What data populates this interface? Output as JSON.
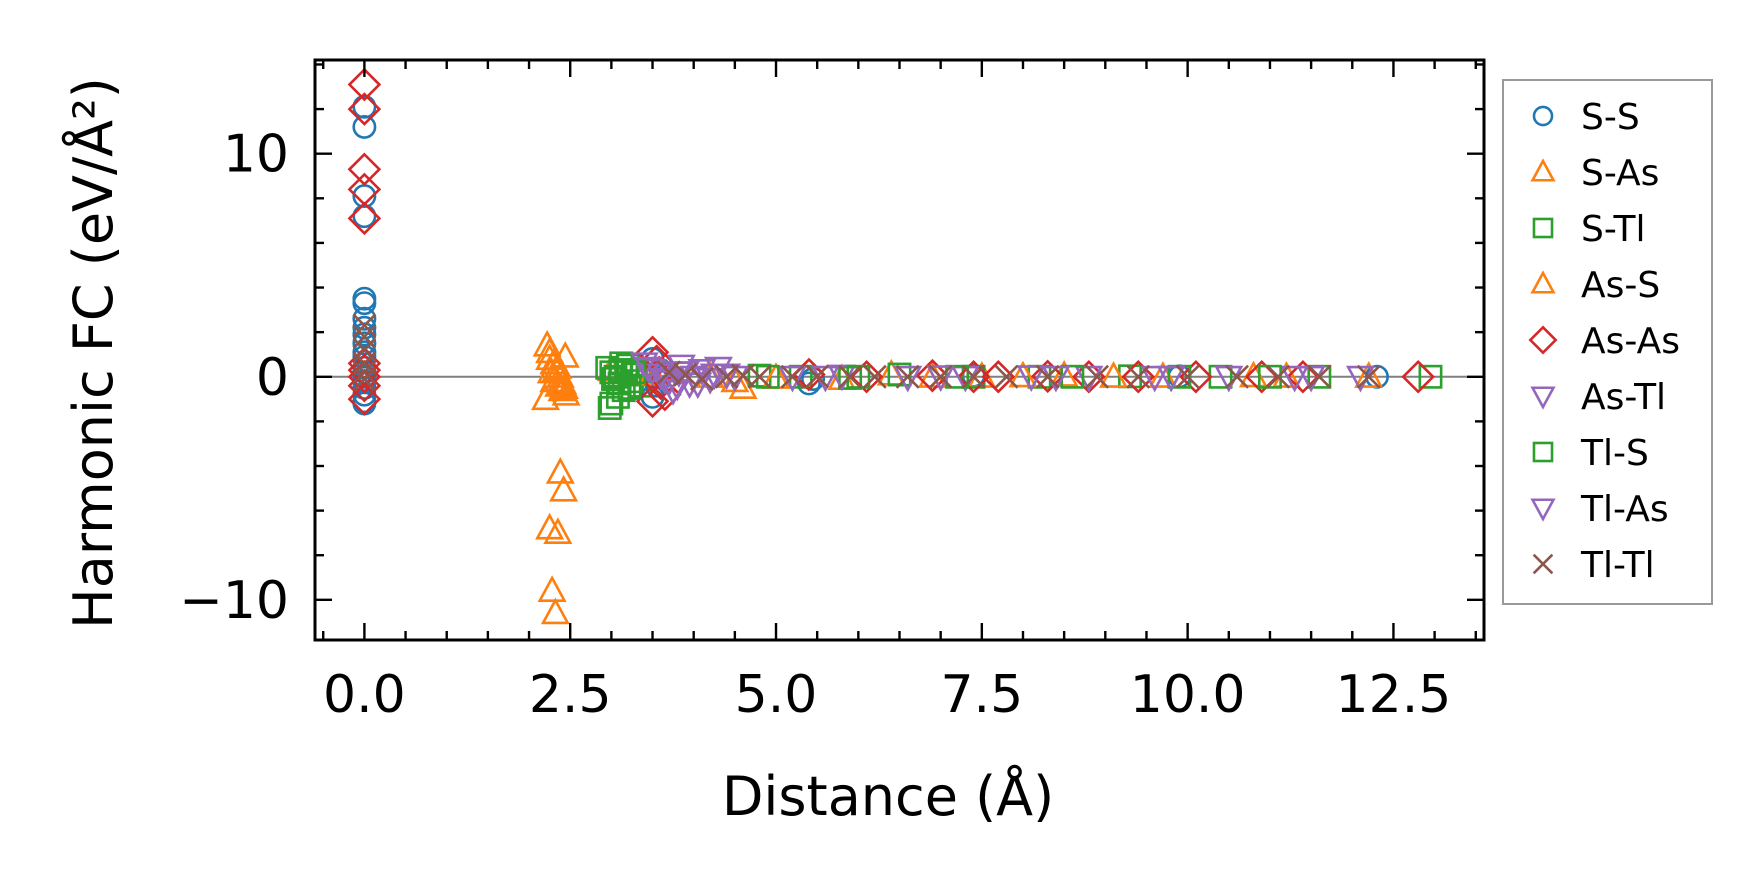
{
  "chart_data": {
    "type": "scatter",
    "title": "",
    "xlabel": "Distance (Å)",
    "ylabel": "Harmonic FC (eV/Å²)",
    "xlim": [
      -0.6,
      13.6
    ],
    "ylim": [
      -11.8,
      14.2
    ],
    "x_ticks": [
      0.0,
      2.5,
      5.0,
      7.5,
      10.0,
      12.5
    ],
    "x_tick_labels": [
      "0.0",
      "2.5",
      "5.0",
      "7.5",
      "10.0",
      "12.5"
    ],
    "y_ticks": [
      -10,
      0,
      10
    ],
    "y_tick_labels": [
      "−10",
      "0",
      "10"
    ],
    "zero_line": true,
    "grid": false,
    "legend_position": "outside-right",
    "series": [
      {
        "name": "S-S",
        "marker": "circle",
        "color": "#1f77b4",
        "x": [
          0,
          0,
          0,
          0,
          0,
          0,
          0,
          0,
          0,
          0,
          0,
          0,
          0,
          0,
          0,
          0,
          0,
          0,
          0,
          0,
          3.5,
          3.55,
          3.6,
          3.5,
          5.4,
          5.45,
          7.4,
          9.9,
          12.3
        ],
        "y": [
          11.2,
          12.1,
          8.1,
          7.2,
          3.5,
          3.3,
          2.6,
          1.9,
          1.5,
          0.9,
          0.4,
          0.2,
          0.0,
          -0.2,
          -0.5,
          -0.8,
          -1.1,
          -1.2,
          2.2,
          1.1,
          0.8,
          -0.4,
          0.3,
          -0.9,
          -0.3,
          -0.1,
          0.05,
          0.02,
          0.0
        ]
      },
      {
        "name": "S-As",
        "marker": "triangle-up",
        "color": "#ff7f0e",
        "x": [
          2.22,
          2.25,
          2.3,
          2.33,
          2.38,
          2.41,
          2.43,
          2.45,
          2.2,
          2.25,
          2.3,
          2.35,
          2.4,
          2.28,
          2.32,
          2.38,
          2.42,
          2.25,
          2.35,
          3.0,
          3.4,
          4.5,
          4.6,
          5.8,
          6.4,
          7.5,
          8.5,
          9.7,
          10.8,
          12.2
        ],
        "y": [
          1.4,
          1.1,
          0.6,
          0.3,
          0.0,
          -0.3,
          -0.5,
          -0.8,
          -1.0,
          0.8,
          -0.2,
          0.4,
          -0.6,
          -9.6,
          -10.6,
          -4.3,
          -5.1,
          -6.8,
          -7.0,
          0.3,
          0.2,
          -0.2,
          -0.5,
          -0.1,
          0.1,
          0.0,
          0.05,
          0.0,
          0.02,
          0.0
        ]
      },
      {
        "name": "S-Tl",
        "marker": "square",
        "color": "#2ca02c",
        "x": [
          2.95,
          3.0,
          3.05,
          3.1,
          3.15,
          3.2,
          2.98,
          3.08,
          3.18,
          3.25,
          3.3,
          3.35,
          3.0,
          3.12,
          4.8,
          5.3,
          5.9,
          6.5,
          7.4,
          8.2,
          9.3,
          10.4,
          11.6,
          12.95
        ],
        "y": [
          0.4,
          0.2,
          0.0,
          -0.3,
          -0.6,
          0.5,
          -1.4,
          -0.9,
          0.3,
          -0.2,
          0.1,
          -0.4,
          -1.2,
          0.6,
          0.05,
          0.0,
          -0.05,
          0.1,
          0.0,
          0.0,
          0.02,
          0.0,
          0.0,
          0.0
        ]
      },
      {
        "name": "As-S",
        "marker": "triangle-up",
        "color": "#ff7f0e",
        "x": [
          2.27,
          2.36,
          2.44,
          3.5,
          4.2,
          5.0,
          6.9,
          8.0,
          9.1,
          11.2
        ],
        "y": [
          0.2,
          -0.4,
          0.9,
          0.1,
          0.0,
          -0.05,
          0.0,
          0.02,
          0.0,
          0.0
        ]
      },
      {
        "name": "As-As",
        "marker": "diamond",
        "color": "#d62728",
        "x": [
          0,
          0,
          0,
          0,
          0,
          0,
          0,
          0,
          0,
          0,
          3.5,
          3.55,
          3.6,
          3.65,
          3.5,
          3.58,
          5.4,
          6.1,
          6.9,
          7.4,
          7.7,
          8.3,
          8.8,
          9.4,
          10.1,
          10.9,
          11.4,
          12.8
        ],
        "y": [
          13.1,
          12.0,
          9.3,
          8.4,
          7.1,
          0.6,
          0.3,
          0.0,
          -0.4,
          -1.0,
          1.1,
          0.7,
          -0.3,
          -0.8,
          -1.1,
          0.2,
          0.1,
          0.0,
          0.05,
          0.0,
          0.0,
          0.02,
          0.0,
          0.0,
          0.0,
          0.0,
          0.0,
          0.0
        ]
      },
      {
        "name": "As-Tl",
        "marker": "triangle-down",
        "color": "#9467bd",
        "x": [
          3.4,
          3.5,
          3.6,
          3.7,
          3.8,
          3.9,
          4.0,
          4.1,
          4.2,
          4.3,
          4.4,
          3.75,
          3.85,
          3.95,
          5.2,
          5.8,
          6.6,
          7.3,
          8.1,
          8.8,
          9.6,
          10.5,
          11.3,
          12.1
        ],
        "y": [
          0.6,
          0.3,
          0.1,
          -0.2,
          -0.4,
          0.2,
          0.0,
          0.3,
          -0.1,
          0.4,
          0.1,
          -0.6,
          0.5,
          -0.3,
          0.0,
          0.05,
          0.0,
          0.0,
          0.02,
          0.0,
          0.0,
          0.0,
          0.0,
          0.0
        ]
      },
      {
        "name": "Tl-S",
        "marker": "square",
        "color": "#2ca02c",
        "x": [
          3.02,
          3.11,
          3.22,
          3.28,
          4.9,
          6.0,
          7.2,
          8.6,
          9.9,
          11.0
        ],
        "y": [
          -0.1,
          0.3,
          -0.5,
          0.2,
          0.0,
          0.0,
          0.0,
          0.0,
          0.0,
          0.0
        ]
      },
      {
        "name": "Tl-As",
        "marker": "triangle-down",
        "color": "#9467bd",
        "x": [
          3.45,
          3.65,
          3.82,
          4.05,
          4.25,
          4.5,
          5.6,
          7.0,
          8.4,
          9.8,
          11.5
        ],
        "y": [
          0.4,
          -0.1,
          0.2,
          -0.3,
          0.1,
          0.0,
          0.0,
          0.02,
          0.0,
          0.0,
          0.0
        ]
      },
      {
        "name": "Tl-Tl",
        "marker": "x",
        "color": "#8c564b",
        "x": [
          0,
          0,
          0,
          0,
          0,
          0,
          3.7,
          3.9,
          4.1,
          4.4,
          4.6,
          4.8,
          5.2,
          5.5,
          5.9,
          6.2,
          6.6,
          7.0,
          7.4,
          7.8,
          8.3,
          8.9,
          9.4,
          10.0,
          10.6,
          11.1,
          11.6,
          12.2
        ],
        "y": [
          2.3,
          1.8,
          1.2,
          0.6,
          0.2,
          -0.1,
          0.2,
          0.1,
          -0.1,
          0.0,
          0.05,
          0.0,
          0.0,
          0.02,
          0.0,
          0.0,
          0.0,
          0.0,
          0.0,
          0.0,
          0.0,
          0.0,
          0.0,
          0.0,
          0.0,
          0.0,
          0.0,
          0.0
        ]
      }
    ]
  }
}
